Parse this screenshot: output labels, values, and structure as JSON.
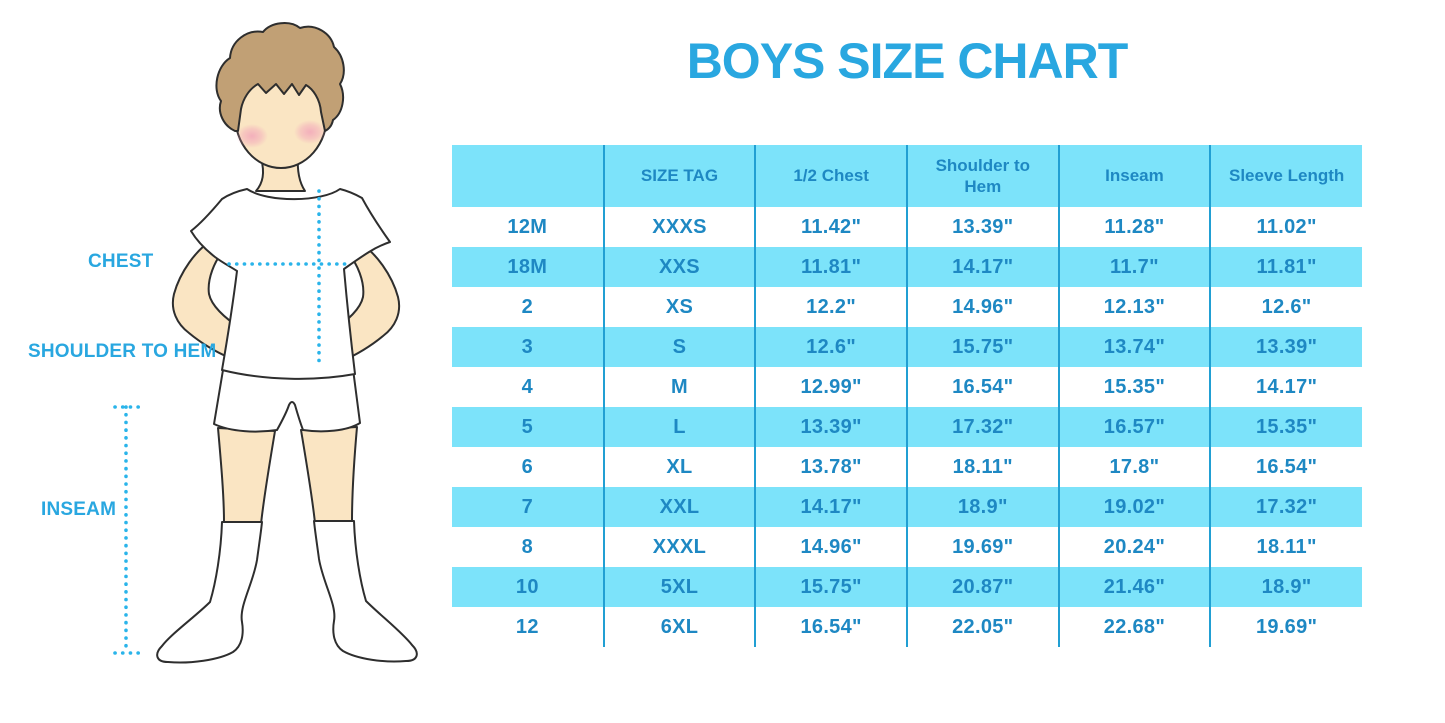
{
  "title": "BOYS SIZE CHART",
  "figure": {
    "illustration": "boy-in-white-tshirt-shorts-and-knee-socks",
    "labels": {
      "chest": "CHEST",
      "shoulder_to_hem": "SHOULDER TO HEM",
      "inseam": "INSEAM"
    }
  },
  "colors": {
    "title_blue": "#29a7e0",
    "table_band_cyan": "#7ce3fa",
    "table_divider_blue": "#219fd3",
    "table_text_blue": "#1e88c3",
    "dotted_line_blue": "#2ab4ea",
    "skin": "#fae5c3",
    "hair_brown": "#c1a075",
    "blush_pink": "#f2a6ba"
  },
  "chart_data": {
    "type": "table",
    "title": "BOYS SIZE CHART",
    "columns": [
      "",
      "SIZE TAG",
      "1/2 Chest",
      "Shoulder to Hem",
      "Inseam",
      "Sleeve Length"
    ],
    "rows": [
      [
        "12M",
        "XXXS",
        "11.42\"",
        "13.39\"",
        "11.28\"",
        "11.02\""
      ],
      [
        "18M",
        "XXS",
        "11.81\"",
        "14.17\"",
        "11.7\"",
        "11.81\""
      ],
      [
        "2",
        "XS",
        "12.2\"",
        "14.96\"",
        "12.13\"",
        "12.6\""
      ],
      [
        "3",
        "S",
        "12.6\"",
        "15.75\"",
        "13.74\"",
        "13.39\""
      ],
      [
        "4",
        "M",
        "12.99\"",
        "16.54\"",
        "15.35\"",
        "14.17\""
      ],
      [
        "5",
        "L",
        "13.39\"",
        "17.32\"",
        "16.57\"",
        "15.35\""
      ],
      [
        "6",
        "XL",
        "13.78\"",
        "18.11\"",
        "17.8\"",
        "16.54\""
      ],
      [
        "7",
        "XXL",
        "14.17\"",
        "18.9\"",
        "19.02\"",
        "17.32\""
      ],
      [
        "8",
        "XXXL",
        "14.96\"",
        "19.69\"",
        "20.24\"",
        "18.11\""
      ],
      [
        "10",
        "5XL",
        "15.75\"",
        "20.87\"",
        "21.46\"",
        "18.9\""
      ],
      [
        "12",
        "6XL",
        "16.54\"",
        "22.05\"",
        "22.68\"",
        "19.69\""
      ]
    ],
    "layout": {
      "striping": "alternate-rows-cyan",
      "header_background": "cyan",
      "grid": "vertical-dividers-only"
    }
  }
}
